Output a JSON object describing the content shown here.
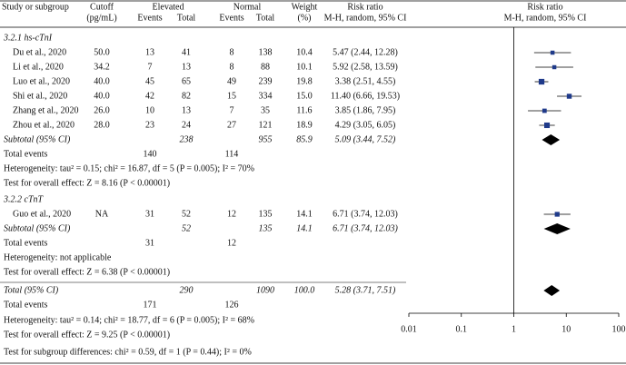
{
  "chart_data": {
    "type": "forest",
    "columns": {
      "study": "Study or subgroup",
      "cutoff": [
        "Cutoff",
        "(pg/mL)"
      ],
      "elevated": "Elevated",
      "normal": "Normal",
      "events": "Events",
      "total": "Total",
      "weight": [
        "Weight",
        "(%)"
      ],
      "rr": [
        "Risk ratio",
        "M-H, random, 95% CI"
      ]
    },
    "subgroups": [
      {
        "title": "3.2.1 hs-cTnI",
        "studies": [
          {
            "name": "Du et al., 2020",
            "cutoff": "50.0",
            "events": [
              13,
              8
            ],
            "totals": [
              41,
              138
            ],
            "weight": 10.4,
            "rr": 5.47,
            "ci": [
              2.44,
              12.28
            ],
            "rr_label": "5.47 (2.44, 12.28)"
          },
          {
            "name": "Li et al., 2020",
            "cutoff": "34.2",
            "events": [
              7,
              8
            ],
            "totals": [
              13,
              88
            ],
            "weight": 10.1,
            "rr": 5.92,
            "ci": [
              2.58,
              13.59
            ],
            "rr_label": "5.92 (2.58, 13.59)"
          },
          {
            "name": "Luo et al., 2020",
            "cutoff": "40.0",
            "events": [
              45,
              49
            ],
            "totals": [
              65,
              239
            ],
            "weight": 19.8,
            "rr": 3.38,
            "ci": [
              2.51,
              4.55
            ],
            "rr_label": "3.38 (2.51, 4.55)"
          },
          {
            "name": "Shi et al., 2020",
            "cutoff": "40.0",
            "events": [
              42,
              15
            ],
            "totals": [
              82,
              334
            ],
            "weight": 15,
            "weight_label": "15.0",
            "rr": 11.4,
            "ci": [
              6.66,
              19.53
            ],
            "rr_label": "11.40 (6.66, 19.53)"
          },
          {
            "name": "Zhang et al., 2020",
            "cutoff": "26.0",
            "events": [
              10,
              7
            ],
            "totals": [
              13,
              35
            ],
            "weight": 11.6,
            "rr": 3.85,
            "ci": [
              1.86,
              7.95
            ],
            "rr_label": "3.85 (1.86, 7.95)"
          },
          {
            "name": "Zhou et al., 2020",
            "cutoff": "28.0",
            "events": [
              23,
              27
            ],
            "totals": [
              24,
              121
            ],
            "weight": 18.9,
            "rr": 4.29,
            "ci": [
              3.05,
              6.05
            ],
            "rr_label": "4.29 (3.05, 6.05)"
          }
        ],
        "subtotal": {
          "name": "Subtotal (95% CI)",
          "totals": [
            238,
            955
          ],
          "weight": 85.9,
          "rr": 5.09,
          "ci": [
            3.44,
            7.52
          ],
          "rr_label": "5.09 (3.44, 7.52)"
        },
        "total_events": {
          "name": "Total events",
          "events": [
            140,
            114
          ]
        },
        "heterogeneity": "Heterogeneity: tau² = 0.15; chi² = 16.87, df = 5 (P = 0.005); I² = 70%",
        "overall_effect": "Test for overall effect: Z = 8.16 (P < 0.00001)"
      },
      {
        "title": "3.2.2 cTnT",
        "studies": [
          {
            "name": "Guo et al., 2020",
            "cutoff": "NA",
            "events": [
              31,
              12
            ],
            "totals": [
              52,
              135
            ],
            "weight": 14.1,
            "rr": 6.71,
            "ci": [
              3.74,
              12.03
            ],
            "rr_label": "6.71 (3.74, 12.03)"
          }
        ],
        "subtotal": {
          "name": "Subtotal (95% CI)",
          "totals": [
            52,
            135
          ],
          "weight": 14.1,
          "rr": 6.71,
          "ci": [
            3.74,
            12.03
          ],
          "rr_label": "6.71 (3.74, 12.03)"
        },
        "total_events": {
          "name": "Total events",
          "events": [
            31,
            12
          ]
        },
        "heterogeneity": "Heterogeneity: not applicable",
        "overall_effect": "Test for overall effect: Z = 6.38 (P < 0.00001)"
      }
    ],
    "total": {
      "name": "Total (95% CI)",
      "totals": [
        290,
        1090
      ],
      "weight": 100,
      "weight_label": "100.0",
      "rr": 5.28,
      "ci": [
        3.71,
        7.51
      ],
      "rr_label": "5.28 (3.71, 7.51)"
    },
    "total_events": {
      "name": "Total events",
      "events": [
        171,
        126
      ]
    },
    "heterogeneity": "Heterogeneity: tau² = 0.14; chi² = 18.77, df = 6 (P = 0.005); I² = 68%",
    "overall_effect": "Test for overall effect: Z = 9.25 (P < 0.00001)",
    "subgroup_differences": "Test for subgroup differences: chi² = 0.59, df = 1 (P = 0.44); I² = 0%",
    "xscale": "log",
    "xlim": [
      0.01,
      100
    ],
    "xticks": [
      0.01,
      0.1,
      1,
      10,
      100
    ],
    "null_line": 1,
    "marker_color": "#1f3a8a",
    "line_color": "#000000"
  }
}
